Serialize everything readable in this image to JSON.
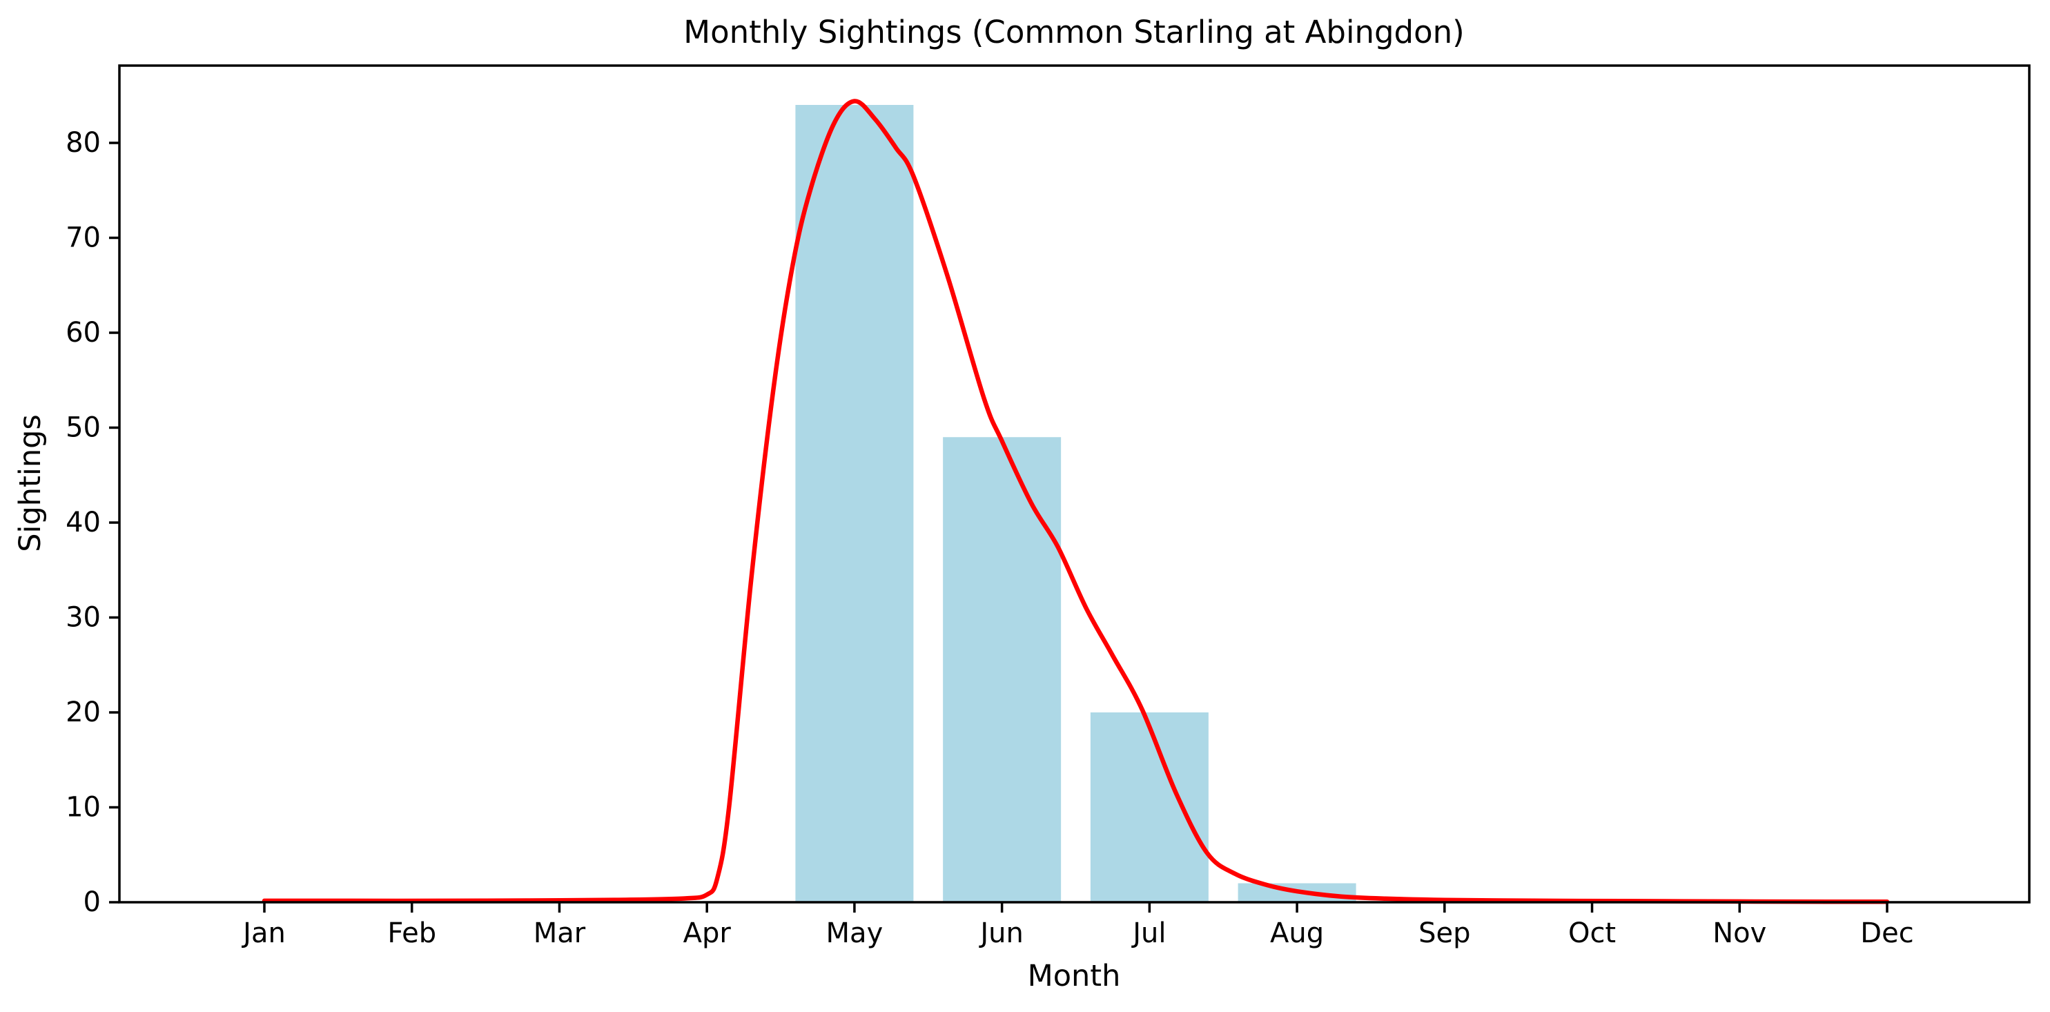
{
  "figure": {
    "background_color": "#ffffff",
    "text_color": "#000000",
    "spine_color": "#000000"
  },
  "chart_data": {
    "type": "bar",
    "title": "Monthly Sightings (Common Starling at Abingdon)",
    "xlabel": "Month",
    "ylabel": "Sightings",
    "categories": [
      "Jan",
      "Feb",
      "Mar",
      "Apr",
      "May",
      "Jun",
      "Jul",
      "Aug",
      "Sep",
      "Oct",
      "Nov",
      "Dec"
    ],
    "values": [
      0,
      0,
      0,
      0,
      84,
      49,
      20,
      2,
      0,
      0,
      0,
      0
    ],
    "bar_color": "#ADD8E6",
    "yticks": [
      0,
      10,
      20,
      30,
      40,
      50,
      60,
      70,
      80
    ],
    "ylim": [
      0,
      88.3
    ],
    "grid": false,
    "legend_position": "none",
    "overlay_line": {
      "name": "smoothed-trend-curve",
      "color": "#FF0000",
      "points": [
        [
          0.0,
          0.15
        ],
        [
          0.6,
          0.15
        ],
        [
          1.2,
          0.15
        ],
        [
          1.8,
          0.18
        ],
        [
          2.4,
          0.25
        ],
        [
          2.85,
          0.4
        ],
        [
          3.0,
          0.8
        ],
        [
          3.07,
          2.5
        ],
        [
          3.15,
          10
        ],
        [
          3.3,
          34
        ],
        [
          3.45,
          54
        ],
        [
          3.58,
          67
        ],
        [
          3.7,
          75
        ],
        [
          3.86,
          82
        ],
        [
          4.0,
          84.4
        ],
        [
          4.14,
          82.5
        ],
        [
          4.28,
          79.5
        ],
        [
          4.4,
          76.5
        ],
        [
          4.63,
          66
        ],
        [
          4.88,
          53
        ],
        [
          5.0,
          48.6
        ],
        [
          5.2,
          42
        ],
        [
          5.38,
          37.4
        ],
        [
          5.57,
          31
        ],
        [
          5.75,
          26
        ],
        [
          5.95,
          20.3
        ],
        [
          6.18,
          11.5
        ],
        [
          6.39,
          5.2
        ],
        [
          6.58,
          3.0
        ],
        [
          6.8,
          1.8
        ],
        [
          7.0,
          1.15
        ],
        [
          7.3,
          0.6
        ],
        [
          7.6,
          0.38
        ],
        [
          8.0,
          0.24
        ],
        [
          8.6,
          0.16
        ],
        [
          9.2,
          0.12
        ],
        [
          10.0,
          0.08
        ],
        [
          10.6,
          0.06
        ],
        [
          11.0,
          0.05
        ]
      ]
    }
  }
}
